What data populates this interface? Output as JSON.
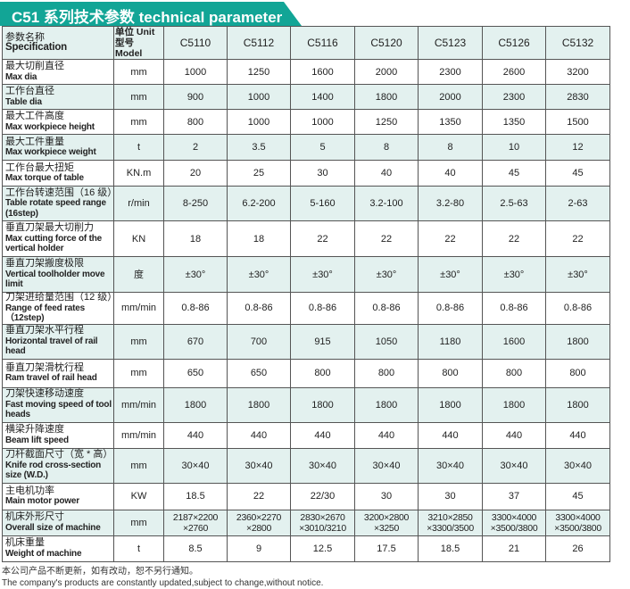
{
  "title": "C51 系列技术参数 technical parameter",
  "header": {
    "spec_cn": "参数名称",
    "spec_en": "Specification",
    "unit_cn": "单位 Unit",
    "unit_en": "型号 Model",
    "models": [
      "C5110",
      "C5112",
      "C5116",
      "C5120",
      "C5123",
      "C5126",
      "C5132"
    ]
  },
  "rows": [
    {
      "cn": "最大切削直径",
      "en": "Max dia",
      "unit": "mm",
      "values": [
        "1000",
        "1250",
        "1600",
        "2000",
        "2300",
        "2600",
        "3200"
      ]
    },
    {
      "cn": "工作台直径",
      "en": "Table dia",
      "unit": "mm",
      "values": [
        "900",
        "1000",
        "1400",
        "1800",
        "2000",
        "2300",
        "2830"
      ]
    },
    {
      "cn": "最大工件高度",
      "en": "Max workpiece height",
      "unit": "mm",
      "values": [
        "800",
        "1000",
        "1000",
        "1250",
        "1350",
        "1350",
        "1500"
      ]
    },
    {
      "cn": "最大工件重量",
      "en": "Max workpiece weight",
      "unit": "t",
      "values": [
        "2",
        "3.5",
        "5",
        "8",
        "8",
        "10",
        "12"
      ]
    },
    {
      "cn": "工作台最大扭矩",
      "en": "Max torque of table",
      "unit": "KN.m",
      "values": [
        "20",
        "25",
        "30",
        "40",
        "40",
        "45",
        "45"
      ]
    },
    {
      "cn": "工作台转速范围（16 级）",
      "en": "Table rotate speed range (16step)",
      "unit": "r/min",
      "values": [
        "8-250",
        "6.2-200",
        "5-160",
        "3.2-100",
        "3.2-80",
        "2.5-63",
        "2-63"
      ]
    },
    {
      "cn": "垂直刀架最大切削力",
      "en": "Max cutting force of the vertical holder",
      "unit": "KN",
      "values": [
        "18",
        "18",
        "22",
        "22",
        "22",
        "22",
        "22"
      ]
    },
    {
      "cn": "垂直刀架搬度极限",
      "en": "Vertical toolholder move limit",
      "unit": "度",
      "values": [
        "±30°",
        "±30°",
        "±30°",
        "±30°",
        "±30°",
        "±30°",
        "±30°"
      ]
    },
    {
      "cn": "刀架进给量范围（12 级）",
      "en": "Range of feed rates（12step)",
      "unit": "mm/min",
      "values": [
        "0.8-86",
        "0.8-86",
        "0.8-86",
        "0.8-86",
        "0.8-86",
        "0.8-86",
        "0.8-86"
      ]
    },
    {
      "cn": "垂直刀架水平行程",
      "en": "Horizontal travel of rail head",
      "unit": "mm",
      "values": [
        "670",
        "700",
        "915",
        "1050",
        "1180",
        "1600",
        "1800"
      ]
    },
    {
      "cn": "垂直刀架滑枕行程",
      "en": "Ram travel of rail head",
      "unit": "mm",
      "values": [
        "650",
        "650",
        "800",
        "800",
        "800",
        "800",
        "800"
      ]
    },
    {
      "cn": "刀架快速移动速度",
      "en": "Fast moving speed of tool heads",
      "unit": "mm/min",
      "values": [
        "1800",
        "1800",
        "1800",
        "1800",
        "1800",
        "1800",
        "1800"
      ]
    },
    {
      "cn": "横梁升降速度",
      "en": "Beam lift speed",
      "unit": "mm/min",
      "values": [
        "440",
        "440",
        "440",
        "440",
        "440",
        "440",
        "440"
      ]
    },
    {
      "cn": "刀杆截面尺寸（宽 * 高）",
      "en": "Knife rod cross-section size (W.D.)",
      "unit": "mm",
      "values": [
        "30×40",
        "30×40",
        "30×40",
        "30×40",
        "30×40",
        "30×40",
        "30×40"
      ]
    },
    {
      "cn": "主电机功率",
      "en": "Main motor power",
      "unit": "KW",
      "values": [
        "18.5",
        "22",
        "22/30",
        "30",
        "30",
        "37",
        "45"
      ]
    },
    {
      "cn": "机床外形尺寸",
      "en": "Overall size of machine",
      "unit": "mm",
      "values": [
        "2187×2200 ×2760",
        "2360×2270 ×2800",
        "2830×2670 ×3010/3210",
        "3200×2800 ×3250",
        "3210×2850 ×3300/3500",
        "3300×4000 ×3500/3800",
        "3300×4000 ×3500/3800"
      ]
    },
    {
      "cn": "机床重量",
      "en": "Weight of machine",
      "unit": "t",
      "values": [
        "8.5",
        "9",
        "12.5",
        "17.5",
        "18.5",
        "21",
        "26"
      ]
    }
  ],
  "heights": [
    28,
    28,
    28,
    29,
    29,
    39,
    40,
    40,
    29,
    39,
    32,
    39,
    29,
    39,
    30,
    29,
    29
  ],
  "notes": {
    "cn": "本公司产品不断更新，如有改动，恕不另行通知。",
    "en": "The company's products are constantly updated,subject to change,without notice."
  },
  "colors": {
    "accent": "#12a596",
    "row_alt": "#e3f1ef"
  }
}
